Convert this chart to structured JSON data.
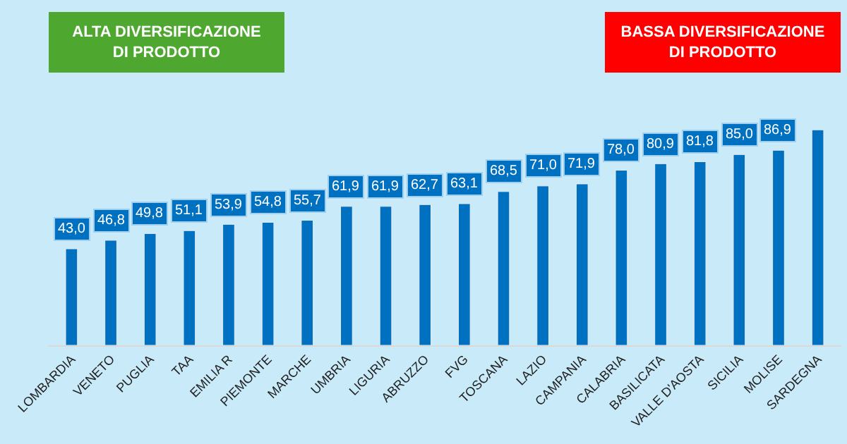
{
  "chart_data": {
    "type": "bar",
    "categories": [
      "LOMBARDIA",
      "VENETO",
      "PUGLIA",
      "TAA",
      "EMILIA R",
      "PIEMONTE",
      "MARCHE",
      "UMBRIA",
      "LIGURIA",
      "ABRUZZO",
      "FVG",
      "TOSCANA",
      "LAZIO",
      "CAMPANIA",
      "CALABRIA",
      "BASILICATA",
      "VALLE D'AOSTA",
      "SICILIA",
      "MOLISE",
      "SARDEGNA"
    ],
    "values": [
      43.0,
      46.8,
      49.8,
      51.1,
      53.9,
      54.8,
      55.7,
      61.9,
      61.9,
      62.7,
      63.1,
      68.5,
      71.0,
      71.9,
      78.0,
      80.9,
      81.8,
      85.0,
      86.9,
      96
    ],
    "value_labels": [
      "43,0",
      "46,8",
      "49,8",
      "51,1",
      "53,9",
      "54,8",
      "55,7",
      "61,9",
      "61,9",
      "62,7",
      "63,1",
      "68,5",
      "71,0",
      "71,9",
      "78,0",
      "80,9",
      "81,8",
      "85,0",
      "86,9",
      null
    ],
    "color": "#0070c0",
    "annotations": [
      "ALTA DIVERSIFICAZIONE\nDI PRODOTTO",
      "BASSA DIVERSIFICAZIONE\nDI PRODOTTO"
    ],
    "grid": false
  }
}
